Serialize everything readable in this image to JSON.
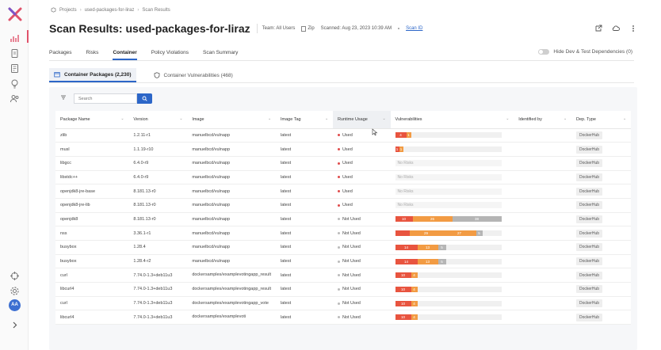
{
  "breadcrumb": {
    "items": [
      "Projects",
      "used-packages-for-liraz",
      "Scan Results"
    ]
  },
  "header": {
    "title": "Scan Results: used-packages-for-liraz",
    "team": "Team:  All Users",
    "type": "Zip",
    "scanned": "Scanned:  Aug 23, 2023 10:39 AM",
    "scan_id": "Scan ID"
  },
  "tabs": [
    {
      "label": "Packages"
    },
    {
      "label": "Risks"
    },
    {
      "label": "Container"
    },
    {
      "label": "Policy Violations"
    },
    {
      "label": "Scan Summary"
    }
  ],
  "toggle_label": "Hide Dev & Test Dependencies (0)",
  "subtabs": [
    {
      "label": "Container Packages (2,230)"
    },
    {
      "label": "Container Vulnerabilities (468)"
    }
  ],
  "search": {
    "placeholder": "Search"
  },
  "table": {
    "columns": [
      "Package Name",
      "Version",
      "Image",
      "Image Tag",
      "Runtime Usage",
      "Vulnerabilities",
      "Identified by",
      "Dep. Type"
    ],
    "rows": [
      {
        "name": "zlib",
        "version": "1.2.11-r1",
        "image": "manuelbcd/vulnapp",
        "tag": "latest",
        "usage": "Used",
        "vuln": [
          {
            "v": "4",
            "c": "crit",
            "w": 14
          },
          {
            "v": "1",
            "c": "high",
            "w": 6
          }
        ],
        "dep": "DockerHub"
      },
      {
        "name": "musl",
        "version": "1.1.19-r10",
        "image": "manuelbcd/vulnapp",
        "tag": "latest",
        "usage": "Used",
        "vuln": [
          {
            "v": "1",
            "c": "crit",
            "w": 5
          },
          {
            "v": "1",
            "c": "high",
            "w": 5
          }
        ],
        "dep": "DockerHub"
      },
      {
        "name": "libgcc",
        "version": "6.4.0-r9",
        "image": "manuelbcd/vulnapp",
        "tag": "latest",
        "usage": "Used",
        "vuln_text": "No Risks",
        "dep": "DockerHub"
      },
      {
        "name": "libstdc++",
        "version": "6.4.0-r9",
        "image": "manuelbcd/vulnapp",
        "tag": "latest",
        "usage": "Used",
        "vuln_text": "No Risks",
        "dep": "DockerHub"
      },
      {
        "name": "openjdk8-jre-base",
        "version": "8.181.13-r0",
        "image": "manuelbcd/vulnapp",
        "tag": "latest",
        "usage": "Used",
        "vuln_text": "No Risks",
        "dep": "DockerHub"
      },
      {
        "name": "openjdk8-jre-lib",
        "version": "8.181.13-r0",
        "image": "manuelbcd/vulnapp",
        "tag": "latest",
        "usage": "Used",
        "vuln_text": "No Risks",
        "dep": "DockerHub"
      },
      {
        "name": "openjdk8",
        "version": "8.181.13-r0",
        "image": "manuelbcd/vulnapp",
        "tag": "latest",
        "usage": "Not Used",
        "vuln": [
          {
            "v": "10",
            "c": "crit",
            "w": 22
          },
          {
            "v": "26",
            "c": "high",
            "w": 50
          },
          {
            "v": "38",
            "c": "med",
            "w": 62
          }
        ],
        "dep": "DockerHub"
      },
      {
        "name": "nss",
        "version": "3.36.1-r1",
        "image": "manuelbcd/vulnapp",
        "tag": "latest",
        "usage": "Not Used",
        "vuln": [
          {
            "v": "",
            "c": "crit",
            "w": 18
          },
          {
            "v": "29",
            "c": "high",
            "w": 42
          },
          {
            "v": "27",
            "c": "high",
            "w": 42
          },
          {
            "v": "5",
            "c": "med",
            "w": 8
          }
        ],
        "dep": "DockerHub"
      },
      {
        "name": "busybox",
        "version": "1.28.4",
        "image": "manuelbcd/vulnapp",
        "tag": "latest",
        "usage": "Not Used",
        "vuln": [
          {
            "v": "14",
            "c": "crit",
            "w": 28
          },
          {
            "v": "13",
            "c": "high",
            "w": 26
          },
          {
            "v": "5",
            "c": "med",
            "w": 10
          }
        ],
        "dep": "DockerHub"
      },
      {
        "name": "busybox",
        "version": "1.28.4-r2",
        "image": "manuelbcd/vulnapp",
        "tag": "latest",
        "usage": "Not Used",
        "vuln": [
          {
            "v": "14",
            "c": "crit",
            "w": 28
          },
          {
            "v": "13",
            "c": "high",
            "w": 26
          },
          {
            "v": "5",
            "c": "med",
            "w": 10
          }
        ],
        "dep": "DockerHub"
      },
      {
        "name": "curl",
        "version": "7.74.0-1.3+deb11u3",
        "image": "dockersamples/examplevotingapp_result",
        "tag": "latest",
        "usage": "Not Used",
        "vuln": [
          {
            "v": "10",
            "c": "crit",
            "w": 20
          },
          {
            "v": "4",
            "c": "high",
            "w": 8
          }
        ],
        "dep": "DockerHub"
      },
      {
        "name": "libcurl4",
        "version": "7.74.0-1.3+deb11u3",
        "image": "dockersamples/examplevotingapp_result",
        "tag": "latest",
        "usage": "Not Used",
        "vuln": [
          {
            "v": "10",
            "c": "crit",
            "w": 20
          },
          {
            "v": "4",
            "c": "high",
            "w": 8
          }
        ],
        "dep": "DockerHub"
      },
      {
        "name": "curl",
        "version": "7.74.0-1.3+deb11u3",
        "image": "dockersamples/examplevotingapp_vote",
        "tag": "latest",
        "usage": "Not Used",
        "vuln": [
          {
            "v": "10",
            "c": "crit",
            "w": 20
          },
          {
            "v": "4",
            "c": "high",
            "w": 8
          }
        ],
        "dep": "DockerHub"
      },
      {
        "name": "libcurl4",
        "version": "7.74.0-1.3+deb11u3",
        "image": "dockersamples/examplevoti",
        "tag": "latest",
        "usage": "Not Used",
        "vuln": [
          {
            "v": "10",
            "c": "crit",
            "w": 20
          },
          {
            "v": "4",
            "c": "high",
            "w": 8
          }
        ],
        "dep": "DockerHub"
      }
    ]
  },
  "user": {
    "initials": "AA"
  },
  "colors": {
    "accent": "#2c66c8",
    "critical": "#e8543f",
    "high": "#f29b43",
    "medium": "#b5b5b5",
    "brand": "#e0526a"
  }
}
